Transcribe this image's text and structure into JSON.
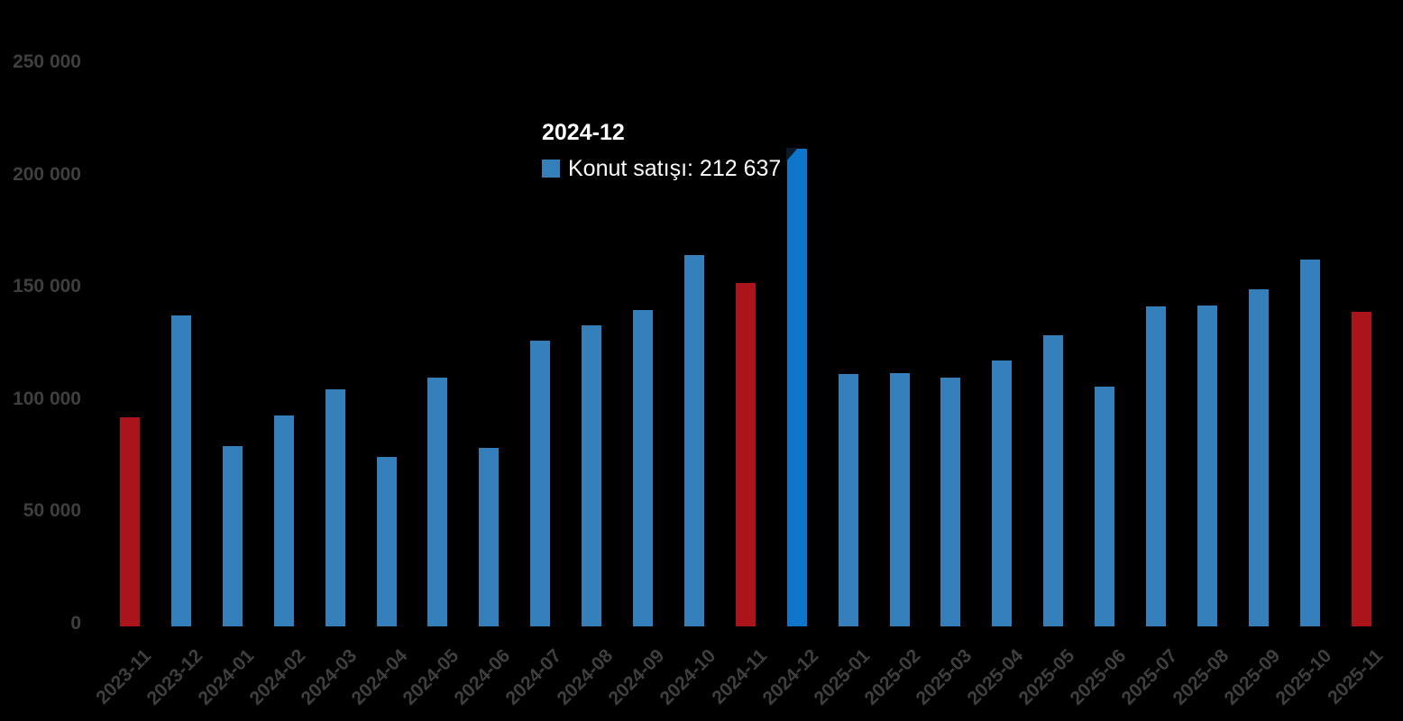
{
  "page": {
    "background_color": "#000000",
    "axis_label_color": "#3F3F3F"
  },
  "chart_data": {
    "type": "bar",
    "title": "",
    "xlabel": "",
    "ylabel": "",
    "grid": false,
    "ylim": [
      0,
      250000
    ],
    "x_tick_rotation": -45,
    "yticks": [
      {
        "value": 0,
        "label": "0"
      },
      {
        "value": 50000,
        "label": "50 000"
      },
      {
        "value": 100000,
        "label": "100 000"
      },
      {
        "value": 150000,
        "label": "150 000"
      },
      {
        "value": 200000,
        "label": "200 000"
      },
      {
        "value": 250000,
        "label": "250 000"
      }
    ],
    "categories": [
      "2023-11",
      "2023-12",
      "2024-01",
      "2024-02",
      "2024-03",
      "2024-04",
      "2024-05",
      "2024-06",
      "2024-07",
      "2024-08",
      "2024-09",
      "2024-10",
      "2024-11",
      "2024-12",
      "2025-01",
      "2025-02",
      "2025-03",
      "2025-04",
      "2025-05",
      "2025-06",
      "2025-07",
      "2025-08",
      "2025-09",
      "2025-10",
      "2025-11"
    ],
    "series": [
      {
        "name": "Konut satışı",
        "values": [
          93178,
          138577,
          80308,
          93902,
          105394,
          75569,
          110588,
          79313,
          127088,
          134155,
          140919,
          165138,
          153014,
          212637,
          112173,
          112818,
          110795,
          118359,
          129500,
          106800,
          142400,
          142800,
          150100,
          163300,
          140000
        ]
      }
    ],
    "point_colors": [
      "red",
      "blue",
      "blue",
      "blue",
      "blue",
      "blue",
      "blue",
      "blue",
      "blue",
      "blue",
      "blue",
      "blue",
      "red",
      "highlight",
      "blue",
      "blue",
      "blue",
      "blue",
      "blue",
      "blue",
      "blue",
      "blue",
      "blue",
      "blue",
      "red"
    ],
    "palette": {
      "blue": "#3580BB",
      "highlight": "#0E76CA",
      "red": "#AC141B"
    },
    "legend_position": "none"
  },
  "tooltip": {
    "title": "2024-12",
    "series_label": "Konut satışı",
    "value": "212 637",
    "text": "Konut satışı: 212 637",
    "marker_color": "#3580BB",
    "highlight_index": 13
  }
}
